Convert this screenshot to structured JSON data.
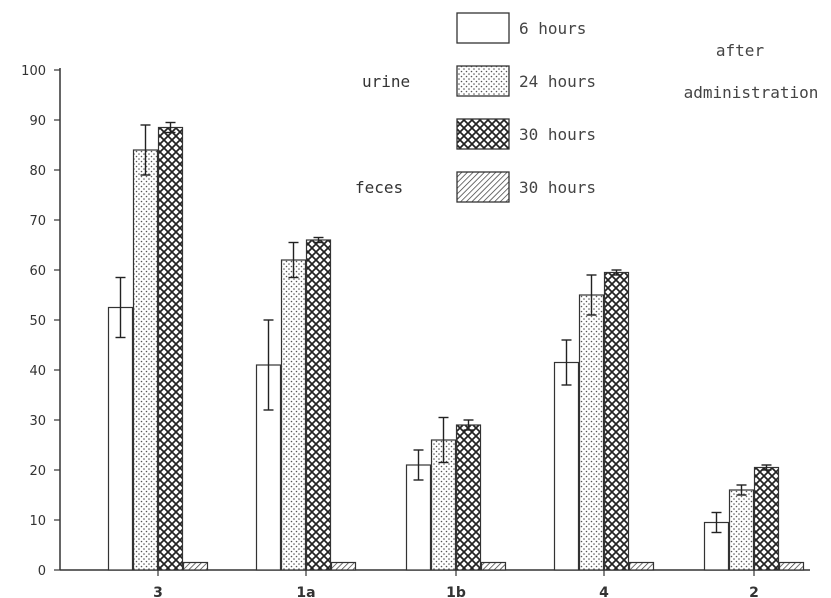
{
  "chart_data": {
    "type": "bar",
    "categories": [
      "3",
      "1a",
      "1b",
      "4",
      "2"
    ],
    "ylim": [
      0,
      100
    ],
    "yticks": [
      0,
      10,
      20,
      30,
      40,
      50,
      60,
      70,
      80,
      90,
      100
    ],
    "grid": false,
    "legend_position": "top-right",
    "legend": {
      "groups": [
        {
          "label": "urine",
          "items": [
            {
              "series": 0,
              "label": "6 hours"
            },
            {
              "series": 1,
              "label": "24 hours"
            },
            {
              "series": 2,
              "label": "30 hours"
            }
          ]
        },
        {
          "label": "feces",
          "items": [
            {
              "series": 3,
              "label": "30 hours"
            }
          ]
        }
      ],
      "note": [
        "after",
        "administration"
      ]
    },
    "series": [
      {
        "pattern": "empty",
        "values": [
          52.5,
          41,
          21,
          41.5,
          9.5
        ],
        "error": [
          6,
          9,
          3,
          4.5,
          2
        ]
      },
      {
        "pattern": "dots",
        "values": [
          84,
          62,
          26,
          55,
          16
        ],
        "error": [
          5,
          3.5,
          4.5,
          4,
          1
        ]
      },
      {
        "pattern": "crosshatch",
        "values": [
          88.5,
          66,
          29,
          59.5,
          20.5
        ],
        "error": [
          1,
          0.5,
          1,
          0.5,
          0.5
        ]
      },
      {
        "pattern": "diagonal",
        "values": [
          1.5,
          1.5,
          1.5,
          1.5,
          1.5
        ],
        "error": [
          0,
          0,
          0,
          0,
          0
        ]
      }
    ]
  }
}
